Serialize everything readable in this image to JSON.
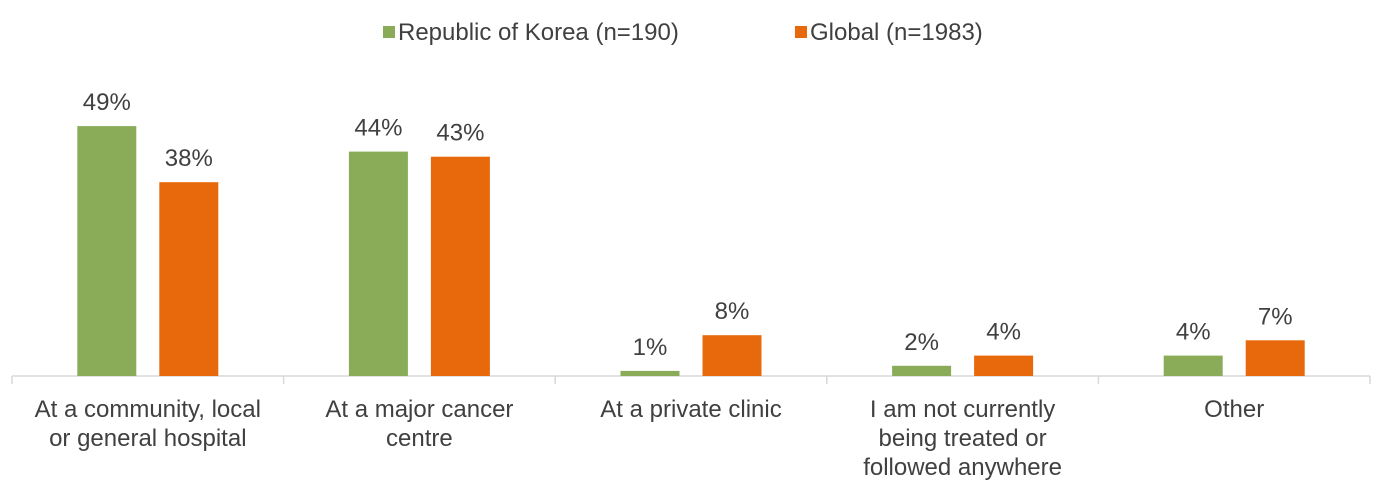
{
  "chart_data": {
    "type": "bar",
    "categories": [
      "At a community, local or general hospital",
      "At a major cancer centre",
      "At a private clinic",
      "I am not currently being treated or followed anywhere",
      "Other"
    ],
    "series": [
      {
        "name": "Republic of Korea (n=190)",
        "color": "#8aac59",
        "values": [
          49,
          44,
          1,
          2,
          4
        ],
        "value_labels": [
          "49%",
          "44%",
          "1%",
          "2%",
          "4%"
        ]
      },
      {
        "name": "Global (n=1983)",
        "color": "#e8690b",
        "values": [
          38,
          43,
          8,
          4,
          7
        ],
        "value_labels": [
          "38%",
          "43%",
          "8%",
          "4%",
          "7%"
        ]
      }
    ],
    "legend": "top"
  }
}
